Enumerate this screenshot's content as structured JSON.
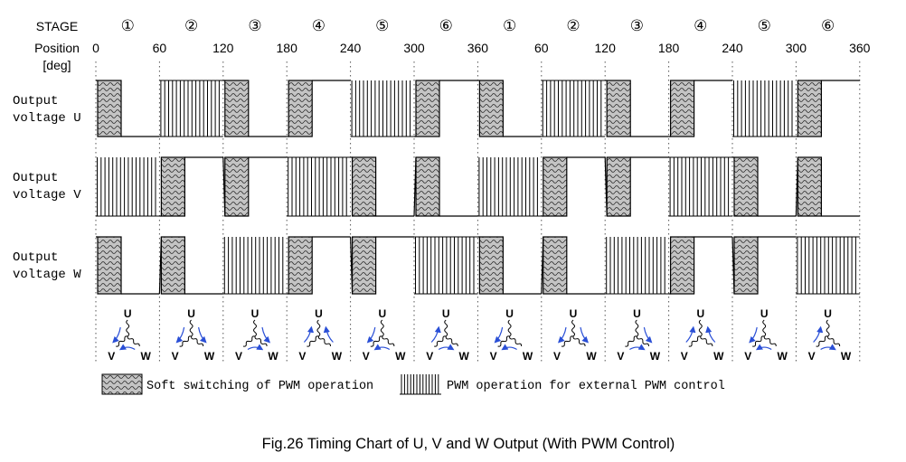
{
  "header": {
    "stage_label": "STAGE",
    "position_label": "Position",
    "unit_label": "[deg]",
    "stages": [
      "①",
      "②",
      "③",
      "④",
      "⑤",
      "⑥",
      "①",
      "②",
      "③",
      "④",
      "⑤",
      "⑥"
    ],
    "positions": [
      "0",
      "60",
      "120",
      "180",
      "240",
      "300",
      "360",
      "60",
      "120",
      "180",
      "240",
      "300",
      "360"
    ]
  },
  "rows": [
    {
      "label_line1": "Output",
      "label_line2": "voltage U"
    },
    {
      "label_line1": "Output",
      "label_line2": "voltage V"
    },
    {
      "label_line1": "Output",
      "label_line2": "voltage W"
    }
  ],
  "phase_labels": {
    "u": "U",
    "v": "V",
    "w": "W"
  },
  "legend": {
    "soft_label": "Soft switching of PWM operation",
    "pwm_label": "PWM operation for external PWM control"
  },
  "caption": "Fig.26 Timing Chart of U, V and W Output (With PWM Control)",
  "timing": {
    "U": [
      "soft-fall",
      "pwm-high",
      "soft-fall",
      "soft-rise",
      "pwm-low",
      "soft-rise",
      "soft-fall",
      "pwm-high",
      "soft-fall",
      "soft-rise",
      "pwm-low",
      "soft-rise"
    ],
    "V": [
      "pwm-low",
      "soft-rise",
      "soft-rise",
      "pwm-high",
      "soft-fall",
      "soft-fall",
      "pwm-low",
      "soft-rise",
      "soft-rise",
      "pwm-high",
      "soft-fall",
      "soft-fall"
    ],
    "W": [
      "soft-fall",
      "soft-fall",
      "pwm-low",
      "soft-rise",
      "soft-rise",
      "pwm-high",
      "soft-fall",
      "soft-fall",
      "pwm-low",
      "soft-rise",
      "soft-rise",
      "pwm-high"
    ]
  },
  "current_arrows": [
    [
      "u-to-v",
      "w-to-v"
    ],
    [
      "u-to-w",
      "u-to-v"
    ],
    [
      "u-to-w",
      "v-to-w"
    ],
    [
      "v-to-u",
      "w-to-u"
    ],
    [
      "w-to-v",
      "u-to-v"
    ],
    [
      "v-to-w",
      "v-to-u"
    ],
    [
      "u-to-v",
      "w-to-v"
    ],
    [
      "u-to-w",
      "u-to-v"
    ],
    [
      "u-to-w",
      "v-to-w"
    ],
    [
      "v-to-u",
      "w-to-u"
    ],
    [
      "w-to-v",
      "u-to-v"
    ],
    [
      "v-to-w",
      "v-to-u"
    ]
  ],
  "colors": {
    "line": "#000000",
    "arrow": "#2a4fd6",
    "soft_fill": "#bdbdbd",
    "grid": "#555555"
  }
}
